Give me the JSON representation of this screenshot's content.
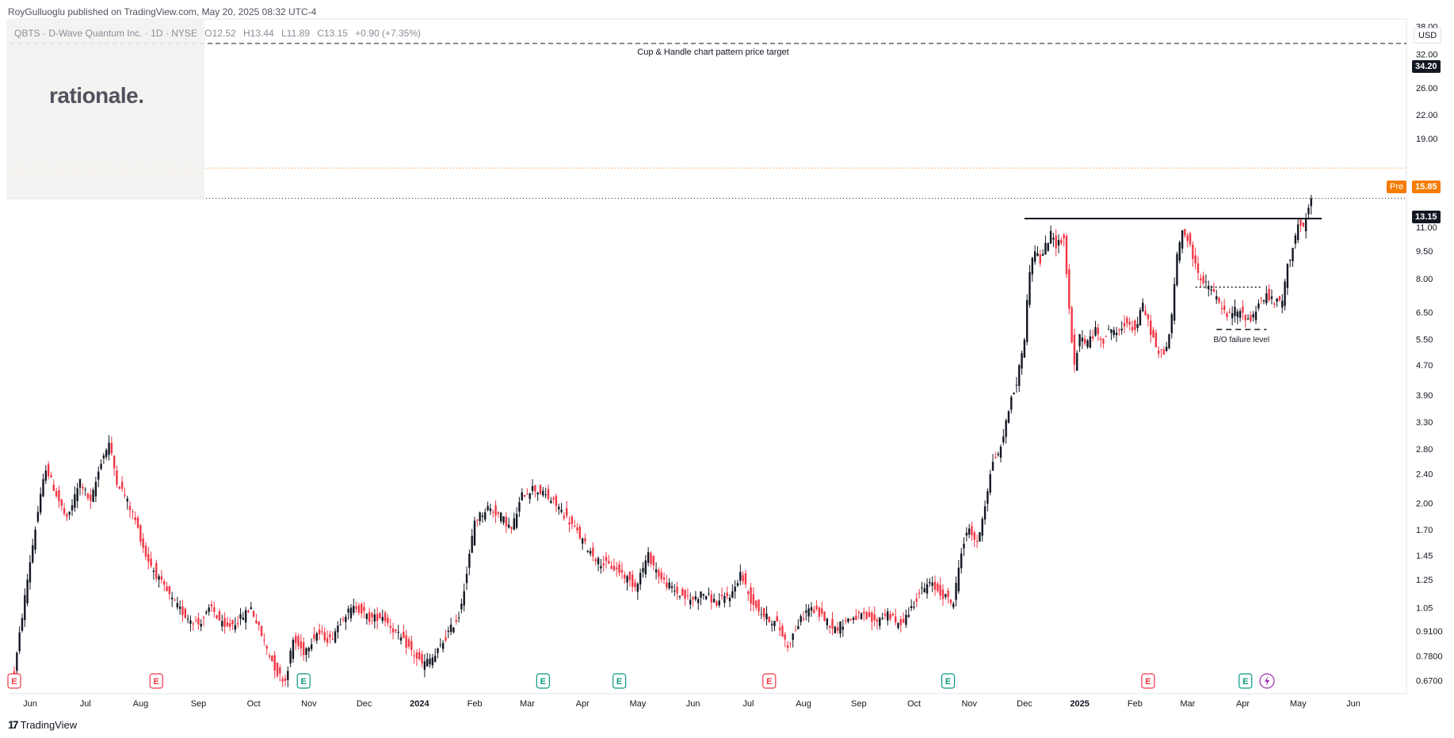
{
  "header": {
    "published": "RoyGulluoglu published on TradingView.com, May 20, 2025 08:32 UTC-4"
  },
  "symbol": {
    "name": "QBTS · D-Wave Quantum Inc. · 1D · NYSE",
    "open": "O12.52",
    "high": "H13.44",
    "low": "L11.89",
    "close": "C13.15",
    "change": "+0.90 (+7.35%)"
  },
  "watermark": "rationale.",
  "currency": "USD",
  "footer": {
    "brand": "TradingView"
  },
  "colors": {
    "up": "#131722",
    "down": "#f23645",
    "pre_line": "#f57c00",
    "earnings_red": "#f23645",
    "earnings_green": "#089981",
    "grid": "#f0f3fa"
  },
  "chart_data": {
    "type": "candlestick",
    "scale": "log",
    "ylim": [
      0.63,
      39
    ],
    "y_ticks": [
      "38.00",
      "32.00",
      "26.00",
      "22.00",
      "19.00",
      "11.00",
      "9.50",
      "8.00",
      "6.50",
      "5.50",
      "4.70",
      "3.90",
      "3.30",
      "2.80",
      "2.40",
      "2.00",
      "1.70",
      "1.45",
      "1.25",
      "1.05",
      "0.9100",
      "0.7800",
      "0.6700"
    ],
    "y_tick_values": [
      38,
      32,
      26,
      22,
      19,
      11,
      9.5,
      8,
      6.5,
      5.5,
      4.7,
      3.9,
      3.3,
      2.8,
      2.4,
      2.0,
      1.7,
      1.45,
      1.25,
      1.05,
      0.91,
      0.78,
      0.67
    ],
    "x_labels": [
      "Jun",
      "Jul",
      "Aug",
      "Sep",
      "Oct",
      "Nov",
      "Dec",
      "2024",
      "Feb",
      "Mar",
      "Apr",
      "May",
      "Jun",
      "Jul",
      "Aug",
      "Sep",
      "Oct",
      "Nov",
      "Dec",
      "2025",
      "Feb",
      "Mar",
      "Apr",
      "May",
      "Jun"
    ],
    "x_label_index": [
      0,
      21,
      42,
      64,
      85,
      106,
      127,
      148,
      169,
      189,
      210,
      231,
      252,
      273,
      294,
      315,
      336,
      357,
      378,
      399,
      420,
      440,
      461,
      482,
      503
    ],
    "bold_x_labels": [
      "2024",
      "2025"
    ],
    "n_days": 516,
    "close_anchors": [
      [
        0,
        0.7
      ],
      [
        3,
        1.0
      ],
      [
        6,
        1.4
      ],
      [
        9,
        1.9
      ],
      [
        12,
        2.5
      ],
      [
        15,
        2.2
      ],
      [
        20,
        1.8
      ],
      [
        25,
        2.3
      ],
      [
        29,
        2.0
      ],
      [
        33,
        2.6
      ],
      [
        36,
        2.9
      ],
      [
        39,
        2.3
      ],
      [
        42,
        2.1
      ],
      [
        46,
        1.8
      ],
      [
        50,
        1.45
      ],
      [
        55,
        1.25
      ],
      [
        60,
        1.1
      ],
      [
        65,
        1.0
      ],
      [
        70,
        0.95
      ],
      [
        75,
        1.05
      ],
      [
        80,
        0.92
      ],
      [
        85,
        0.97
      ],
      [
        90,
        1.05
      ],
      [
        95,
        0.85
      ],
      [
        100,
        0.7
      ],
      [
        103,
        0.67
      ],
      [
        106,
        0.86
      ],
      [
        110,
        0.8
      ],
      [
        115,
        0.9
      ],
      [
        120,
        0.86
      ],
      [
        125,
        1.0
      ],
      [
        130,
        1.06
      ],
      [
        135,
        0.98
      ],
      [
        140,
        1.0
      ],
      [
        145,
        0.9
      ],
      [
        150,
        0.82
      ],
      [
        155,
        0.74
      ],
      [
        160,
        0.78
      ],
      [
        165,
        0.9
      ],
      [
        169,
        1.0
      ],
      [
        172,
        1.3
      ],
      [
        175,
        1.8
      ],
      [
        180,
        1.95
      ],
      [
        185,
        1.85
      ],
      [
        189,
        1.7
      ],
      [
        193,
        2.1
      ],
      [
        197,
        2.2
      ],
      [
        202,
        2.1
      ],
      [
        207,
        1.95
      ],
      [
        212,
        1.75
      ],
      [
        217,
        1.55
      ],
      [
        222,
        1.4
      ],
      [
        227,
        1.35
      ],
      [
        231,
        1.3
      ],
      [
        236,
        1.2
      ],
      [
        241,
        1.45
      ],
      [
        246,
        1.25
      ],
      [
        252,
        1.15
      ],
      [
        257,
        1.1
      ],
      [
        262,
        1.15
      ],
      [
        267,
        1.08
      ],
      [
        273,
        1.15
      ],
      [
        276,
        1.3
      ],
      [
        280,
        1.1
      ],
      [
        285,
        1.0
      ],
      [
        290,
        0.95
      ],
      [
        294,
        0.83
      ],
      [
        298,
        0.95
      ],
      [
        302,
        1.05
      ],
      [
        307,
        1.0
      ],
      [
        312,
        0.92
      ],
      [
        317,
        0.98
      ],
      [
        322,
        1.0
      ],
      [
        327,
        0.96
      ],
      [
        332,
        1.02
      ],
      [
        336,
        0.94
      ],
      [
        340,
        1.02
      ],
      [
        344,
        1.15
      ],
      [
        348,
        1.22
      ],
      [
        352,
        1.15
      ],
      [
        357,
        1.08
      ],
      [
        360,
        1.5
      ],
      [
        363,
        1.72
      ],
      [
        366,
        1.55
      ],
      [
        369,
        2.0
      ],
      [
        372,
        2.6
      ],
      [
        375,
        2.8
      ],
      [
        378,
        3.6
      ],
      [
        381,
        4.2
      ],
      [
        384,
        5.6
      ],
      [
        386,
        8.5
      ],
      [
        388,
        9.6
      ],
      [
        390,
        8.9
      ],
      [
        392,
        9.8
      ],
      [
        394,
        10.5
      ],
      [
        396,
        9.9
      ],
      [
        399,
        10.3
      ],
      [
        401,
        6.6
      ],
      [
        403,
        4.6
      ],
      [
        405,
        5.6
      ],
      [
        408,
        5.4
      ],
      [
        411,
        5.8
      ],
      [
        414,
        5.5
      ],
      [
        417,
        5.9
      ],
      [
        420,
        5.7
      ],
      [
        423,
        6.2
      ],
      [
        426,
        5.8
      ],
      [
        429,
        6.8
      ],
      [
        432,
        5.8
      ],
      [
        435,
        5.0
      ],
      [
        438,
        5.2
      ],
      [
        440,
        6.3
      ],
      [
        442,
        9.3
      ],
      [
        444,
        10.8
      ],
      [
        446,
        10.2
      ],
      [
        449,
        8.7
      ],
      [
        452,
        7.8
      ],
      [
        455,
        7.5
      ],
      [
        458,
        6.9
      ],
      [
        461,
        6.3
      ],
      [
        464,
        6.6
      ],
      [
        467,
        6.4
      ],
      [
        470,
        6.2
      ],
      [
        473,
        6.9
      ],
      [
        476,
        7.2
      ],
      [
        479,
        6.9
      ],
      [
        482,
        7.0
      ],
      [
        484,
        8.6
      ],
      [
        486,
        9.8
      ],
      [
        488,
        11.2
      ],
      [
        490,
        10.8
      ],
      [
        492,
        12.3
      ],
      [
        493,
        13.15
      ]
    ],
    "last_candle": {
      "open": 12.52,
      "high": 13.44,
      "low": 11.89,
      "close": 13.15
    },
    "horizontal_levels": [
      {
        "value": 34.2,
        "style": "dashed",
        "color": "#131722",
        "label": "Cup & Handle chart pattern price target",
        "tag": "34.20"
      },
      {
        "value": 15.85,
        "style": "dotted",
        "color": "#f57c00",
        "tag": "15.85",
        "badge": "Pre"
      },
      {
        "value": 13.15,
        "style": "dotted",
        "color": "#131722",
        "tag": "13.15"
      }
    ],
    "trend_lines": [
      {
        "x1": 384,
        "x2": 497,
        "value": 11.6,
        "style": "solid",
        "color": "#131722"
      },
      {
        "x1": 449,
        "x2": 474,
        "value": 7.6,
        "style": "dotted",
        "color": "#131722"
      },
      {
        "x1": 457,
        "x2": 476,
        "value": 5.85,
        "style": "dashed",
        "color": "#131722",
        "label": "B/O failure level"
      }
    ],
    "earnings_markers": [
      {
        "x": 0,
        "color": "red",
        "letter": "E"
      },
      {
        "x": 54,
        "color": "red",
        "letter": "E"
      },
      {
        "x": 110,
        "color": "green",
        "letter": "E"
      },
      {
        "x": 201,
        "color": "green",
        "letter": "E"
      },
      {
        "x": 230,
        "color": "green",
        "letter": "E"
      },
      {
        "x": 287,
        "color": "red",
        "letter": "E"
      },
      {
        "x": 355,
        "color": "green",
        "letter": "E"
      },
      {
        "x": 431,
        "color": "red",
        "letter": "E"
      },
      {
        "x": 468,
        "color": "green",
        "letter": "E"
      }
    ]
  }
}
